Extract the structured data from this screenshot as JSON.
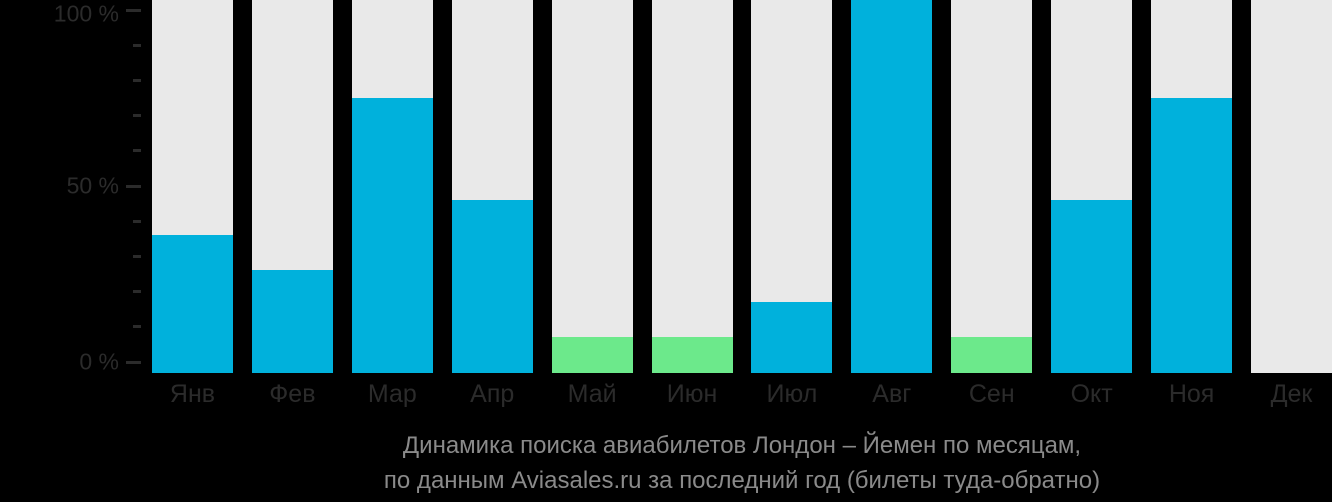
{
  "colors": {
    "background": "#000000",
    "bar_cyan": "#00b1dc",
    "bar_green": "#6ce98b",
    "column_track": "#e9e9e9",
    "axis_text": "#2b2b2b",
    "caption_text": "#8a8a8a"
  },
  "chart_data": {
    "type": "bar",
    "title": "Динамика поиска авиабилетов Лондон – Йемен по месяцам,",
    "subtitle": "по данным Aviasales.ru за последний год (билеты туда-обратно)",
    "categories": [
      "Янв",
      "Фев",
      "Мар",
      "Апр",
      "Май",
      "Июн",
      "Июл",
      "Авг",
      "Сен",
      "Окт",
      "Ноя",
      "Дек"
    ],
    "values": [
      36,
      26,
      75,
      46,
      7,
      7,
      17,
      100,
      7,
      46,
      75,
      0
    ],
    "bar_colors": [
      "cyan",
      "cyan",
      "cyan",
      "cyan",
      "green",
      "green",
      "cyan",
      "cyan",
      "green",
      "cyan",
      "cyan",
      "cyan"
    ],
    "xlabel": "",
    "ylabel": "",
    "ylim": [
      0,
      100
    ],
    "yticks_major": [
      0,
      50,
      100
    ],
    "ytick_minor_step": 10,
    "ytick_labels": {
      "0": "0 %",
      "50": "50 %",
      "100": "100 %"
    },
    "legend": "none",
    "grid": "off"
  }
}
